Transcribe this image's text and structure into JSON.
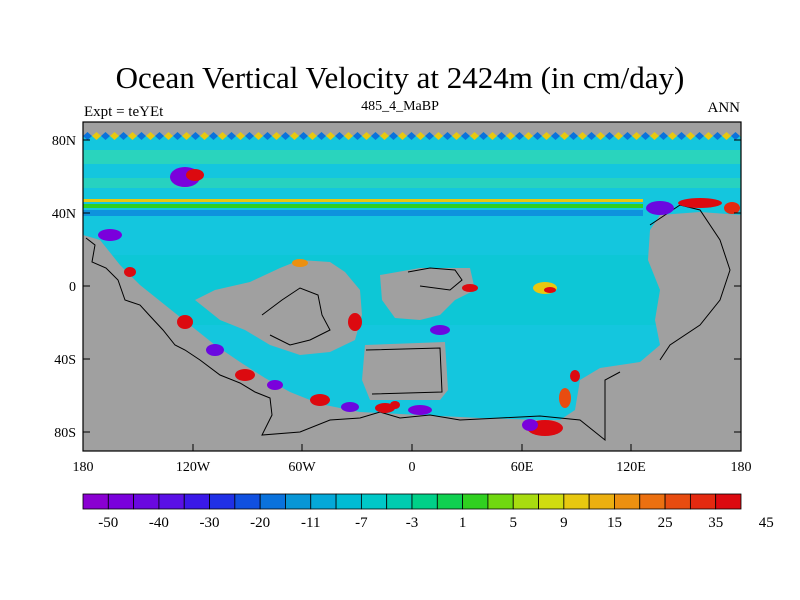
{
  "title": "Ocean Vertical Velocity at 2424m (in cm/day)",
  "subtitle_left": "Expt = teYEt",
  "subtitle_center": "485_4_MaBP",
  "subtitle_right": "ANN",
  "lat_labels": [
    "80N",
    "40N",
    "0",
    "40S",
    "80S"
  ],
  "lon_labels": [
    "180",
    "120W",
    "60W",
    "0",
    "60E",
    "120E",
    "180"
  ],
  "colorbar": {
    "labels": [
      "-50",
      "-40",
      "-30",
      "-20",
      "-11",
      "-7",
      "-3",
      "1",
      "5",
      "9",
      "15",
      "25",
      "35",
      "45"
    ],
    "colors": [
      "#8a00d2",
      "#7a00dc",
      "#6a08e0",
      "#5a10e6",
      "#3a18e8",
      "#2030e6",
      "#1050e0",
      "#0a72dc",
      "#0896d6",
      "#04a8d8",
      "#00bcd4",
      "#00c8c8",
      "#00ccb0",
      "#00d088",
      "#10d050",
      "#30d020",
      "#70d810",
      "#a8dc10",
      "#d0dc10",
      "#e8c810",
      "#ecb010",
      "#ec9010",
      "#ec7010",
      "#e84c10",
      "#e42a10",
      "#dc0a10"
    ]
  },
  "map": {
    "land_color": "#a0a0a0",
    "ocean_color": "#14c6de",
    "band_color": "#2fd7b4"
  }
}
